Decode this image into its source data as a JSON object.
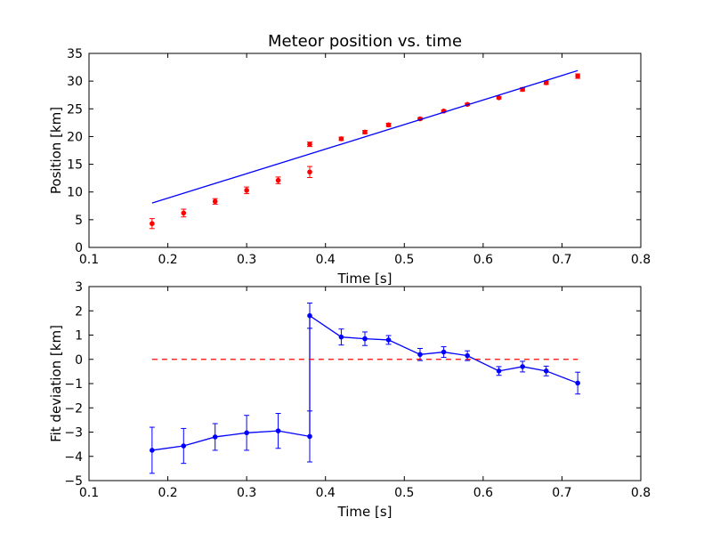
{
  "chart_data": [
    {
      "type": "scatter",
      "title": "Meteor position vs. time",
      "xlabel": "Time [s]",
      "ylabel": "Position [km]",
      "xlim": [
        0.1,
        0.8
      ],
      "ylim": [
        0,
        35
      ],
      "xticks": [
        "0.1",
        "0.2",
        "0.3",
        "0.4",
        "0.5",
        "0.6",
        "0.7",
        "0.8"
      ],
      "yticks": [
        "0",
        "5",
        "10",
        "15",
        "20",
        "25",
        "30",
        "35"
      ],
      "grid": false,
      "series": [
        {
          "kind": "errorbar",
          "color": "#ff0000",
          "x": [
            0.18,
            0.22,
            0.26,
            0.3,
            0.34,
            0.38,
            0.38,
            0.42,
            0.45,
            0.48,
            0.52,
            0.55,
            0.58,
            0.62,
            0.65,
            0.68,
            0.72
          ],
          "y": [
            4.3,
            6.2,
            8.3,
            10.3,
            12.1,
            13.6,
            18.6,
            19.6,
            20.8,
            22.1,
            23.2,
            24.6,
            25.8,
            27.0,
            28.5,
            29.7,
            30.9
          ],
          "yerr": [
            0.9,
            0.7,
            0.5,
            0.6,
            0.6,
            1.0,
            0.4,
            0.3,
            0.3,
            0.3,
            0.2,
            0.2,
            0.2,
            0.2,
            0.3,
            0.3,
            0.4
          ]
        },
        {
          "kind": "line",
          "color": "#0000ff",
          "x": [
            0.18,
            0.72
          ],
          "y": [
            8.0,
            31.9
          ]
        }
      ]
    },
    {
      "type": "line",
      "title": "",
      "xlabel": "Time [s]",
      "ylabel": "Fit deviation [km]",
      "xlim": [
        0.1,
        0.8
      ],
      "ylim": [
        -5,
        3
      ],
      "xticks": [
        "0.1",
        "0.2",
        "0.3",
        "0.4",
        "0.5",
        "0.6",
        "0.7",
        "0.8"
      ],
      "yticks": [
        "−5",
        "−4",
        "−3",
        "−2",
        "−1",
        "0",
        "1",
        "2",
        "3"
      ],
      "grid": false,
      "series": [
        {
          "kind": "errorbar-line",
          "color": "#0000ff",
          "x": [
            0.18,
            0.22,
            0.26,
            0.3,
            0.34,
            0.38,
            0.38,
            0.42,
            0.45,
            0.48,
            0.52,
            0.55,
            0.58,
            0.62,
            0.65,
            0.68,
            0.72
          ],
          "y": [
            -3.75,
            -3.57,
            -3.2,
            -3.03,
            -2.95,
            -3.18,
            1.8,
            0.92,
            0.85,
            0.8,
            0.2,
            0.3,
            0.15,
            -0.48,
            -0.3,
            -0.48,
            -0.98
          ],
          "yerr": [
            0.95,
            0.72,
            0.55,
            0.72,
            0.72,
            1.05,
            0.52,
            0.33,
            0.28,
            0.18,
            0.25,
            0.22,
            0.2,
            0.18,
            0.22,
            0.2,
            0.45
          ]
        },
        {
          "kind": "dashed",
          "color": "#ff0000",
          "x": [
            0.18,
            0.72
          ],
          "y": [
            0,
            0
          ]
        }
      ]
    }
  ]
}
